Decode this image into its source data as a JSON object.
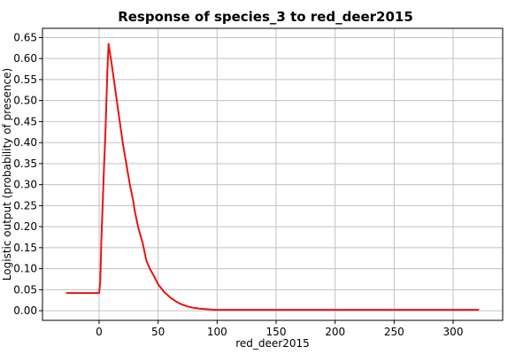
{
  "chart_data": {
    "type": "line",
    "title": "Response of species_3 to red_deer2015",
    "xlabel": "red_deer2015",
    "ylabel": "Logistic output (probability of presence)",
    "xlim": [
      -48,
      342
    ],
    "ylim": [
      -0.023,
      0.672
    ],
    "xticks": [
      0,
      50,
      100,
      150,
      200,
      250,
      300
    ],
    "yticks": [
      0.0,
      0.05,
      0.1,
      0.15,
      0.2,
      0.25,
      0.3,
      0.35,
      0.4,
      0.45,
      0.5,
      0.55,
      0.6,
      0.65
    ],
    "grid": true,
    "series": [
      {
        "color": "#ee1111",
        "x": [
          -28,
          -10,
          0,
          1,
          2,
          3,
          4,
          5,
          6,
          7,
          8,
          10,
          12,
          15,
          18,
          20,
          23,
          26,
          29,
          30,
          33,
          37,
          40,
          43,
          46,
          50,
          55,
          60,
          65,
          70,
          75,
          80,
          85,
          90,
          95,
          98,
          100,
          150,
          200,
          250,
          300,
          322
        ],
        "y": [
          0.042,
          0.042,
          0.042,
          0.07,
          0.18,
          0.25,
          0.33,
          0.4,
          0.48,
          0.57,
          0.635,
          0.6,
          0.56,
          0.5,
          0.44,
          0.4,
          0.35,
          0.3,
          0.26,
          0.24,
          0.2,
          0.16,
          0.12,
          0.1,
          0.085,
          0.063,
          0.045,
          0.032,
          0.022,
          0.015,
          0.01,
          0.007,
          0.005,
          0.004,
          0.003,
          0.002,
          0.002,
          0.002,
          0.002,
          0.002,
          0.002,
          0.002
        ]
      }
    ]
  }
}
